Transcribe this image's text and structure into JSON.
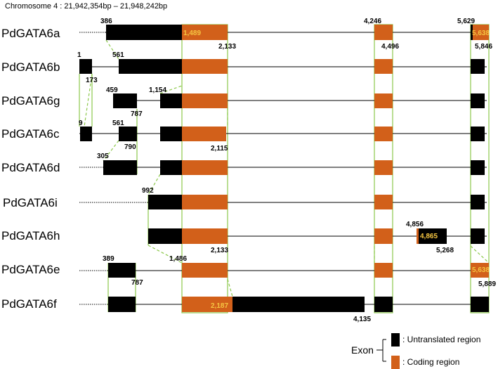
{
  "title": "Chromosome 4 : 21,942,354bp – 21,948,242bp",
  "colors": {
    "utr": "#000000",
    "cds": "#d2601a",
    "guide": "#8cc84b",
    "inner_label": "#f5c542"
  },
  "genes": [
    {
      "name": "PdGATA6a"
    },
    {
      "name": "PdGATA6b"
    },
    {
      "name": "PdGATA6g"
    },
    {
      "name": "PdGATA6c"
    },
    {
      "name": "PdGATA6d"
    },
    {
      "name": "PdGATA6i"
    },
    {
      "name": "PdGATA6h"
    },
    {
      "name": "PdGATA6e"
    },
    {
      "name": "PdGATA6f"
    }
  ],
  "labels": {
    "a_386": "386",
    "a_1489": "1,489",
    "a_2133": "2,133",
    "a_4246": "4,246",
    "a_4496": "4,496",
    "a_5629": "5,629",
    "a_5638": "5,638",
    "a_5846": "5,846",
    "b_1": "1",
    "b_173": "173",
    "b_561": "561",
    "g_459": "459",
    "g_787": "787",
    "g_1154": "1,154",
    "c_9": "9",
    "c_561": "561",
    "c_790": "790",
    "c_2115": "2,115",
    "d_305": "305",
    "i_992": "992",
    "h_2133": "2,133",
    "h_4856": "4,856",
    "h_4865": "4,865",
    "h_5268": "5,268",
    "e_389": "389",
    "e_787": "787",
    "e_1486": "1,486",
    "e_5638": "5,638",
    "e_5889": "5,889",
    "f_2187": "2,187",
    "f_4135": "4,135"
  },
  "legend": {
    "exon": "Exon",
    "utr_label": ": Untranslated region",
    "cds_label": ": Coding region"
  }
}
